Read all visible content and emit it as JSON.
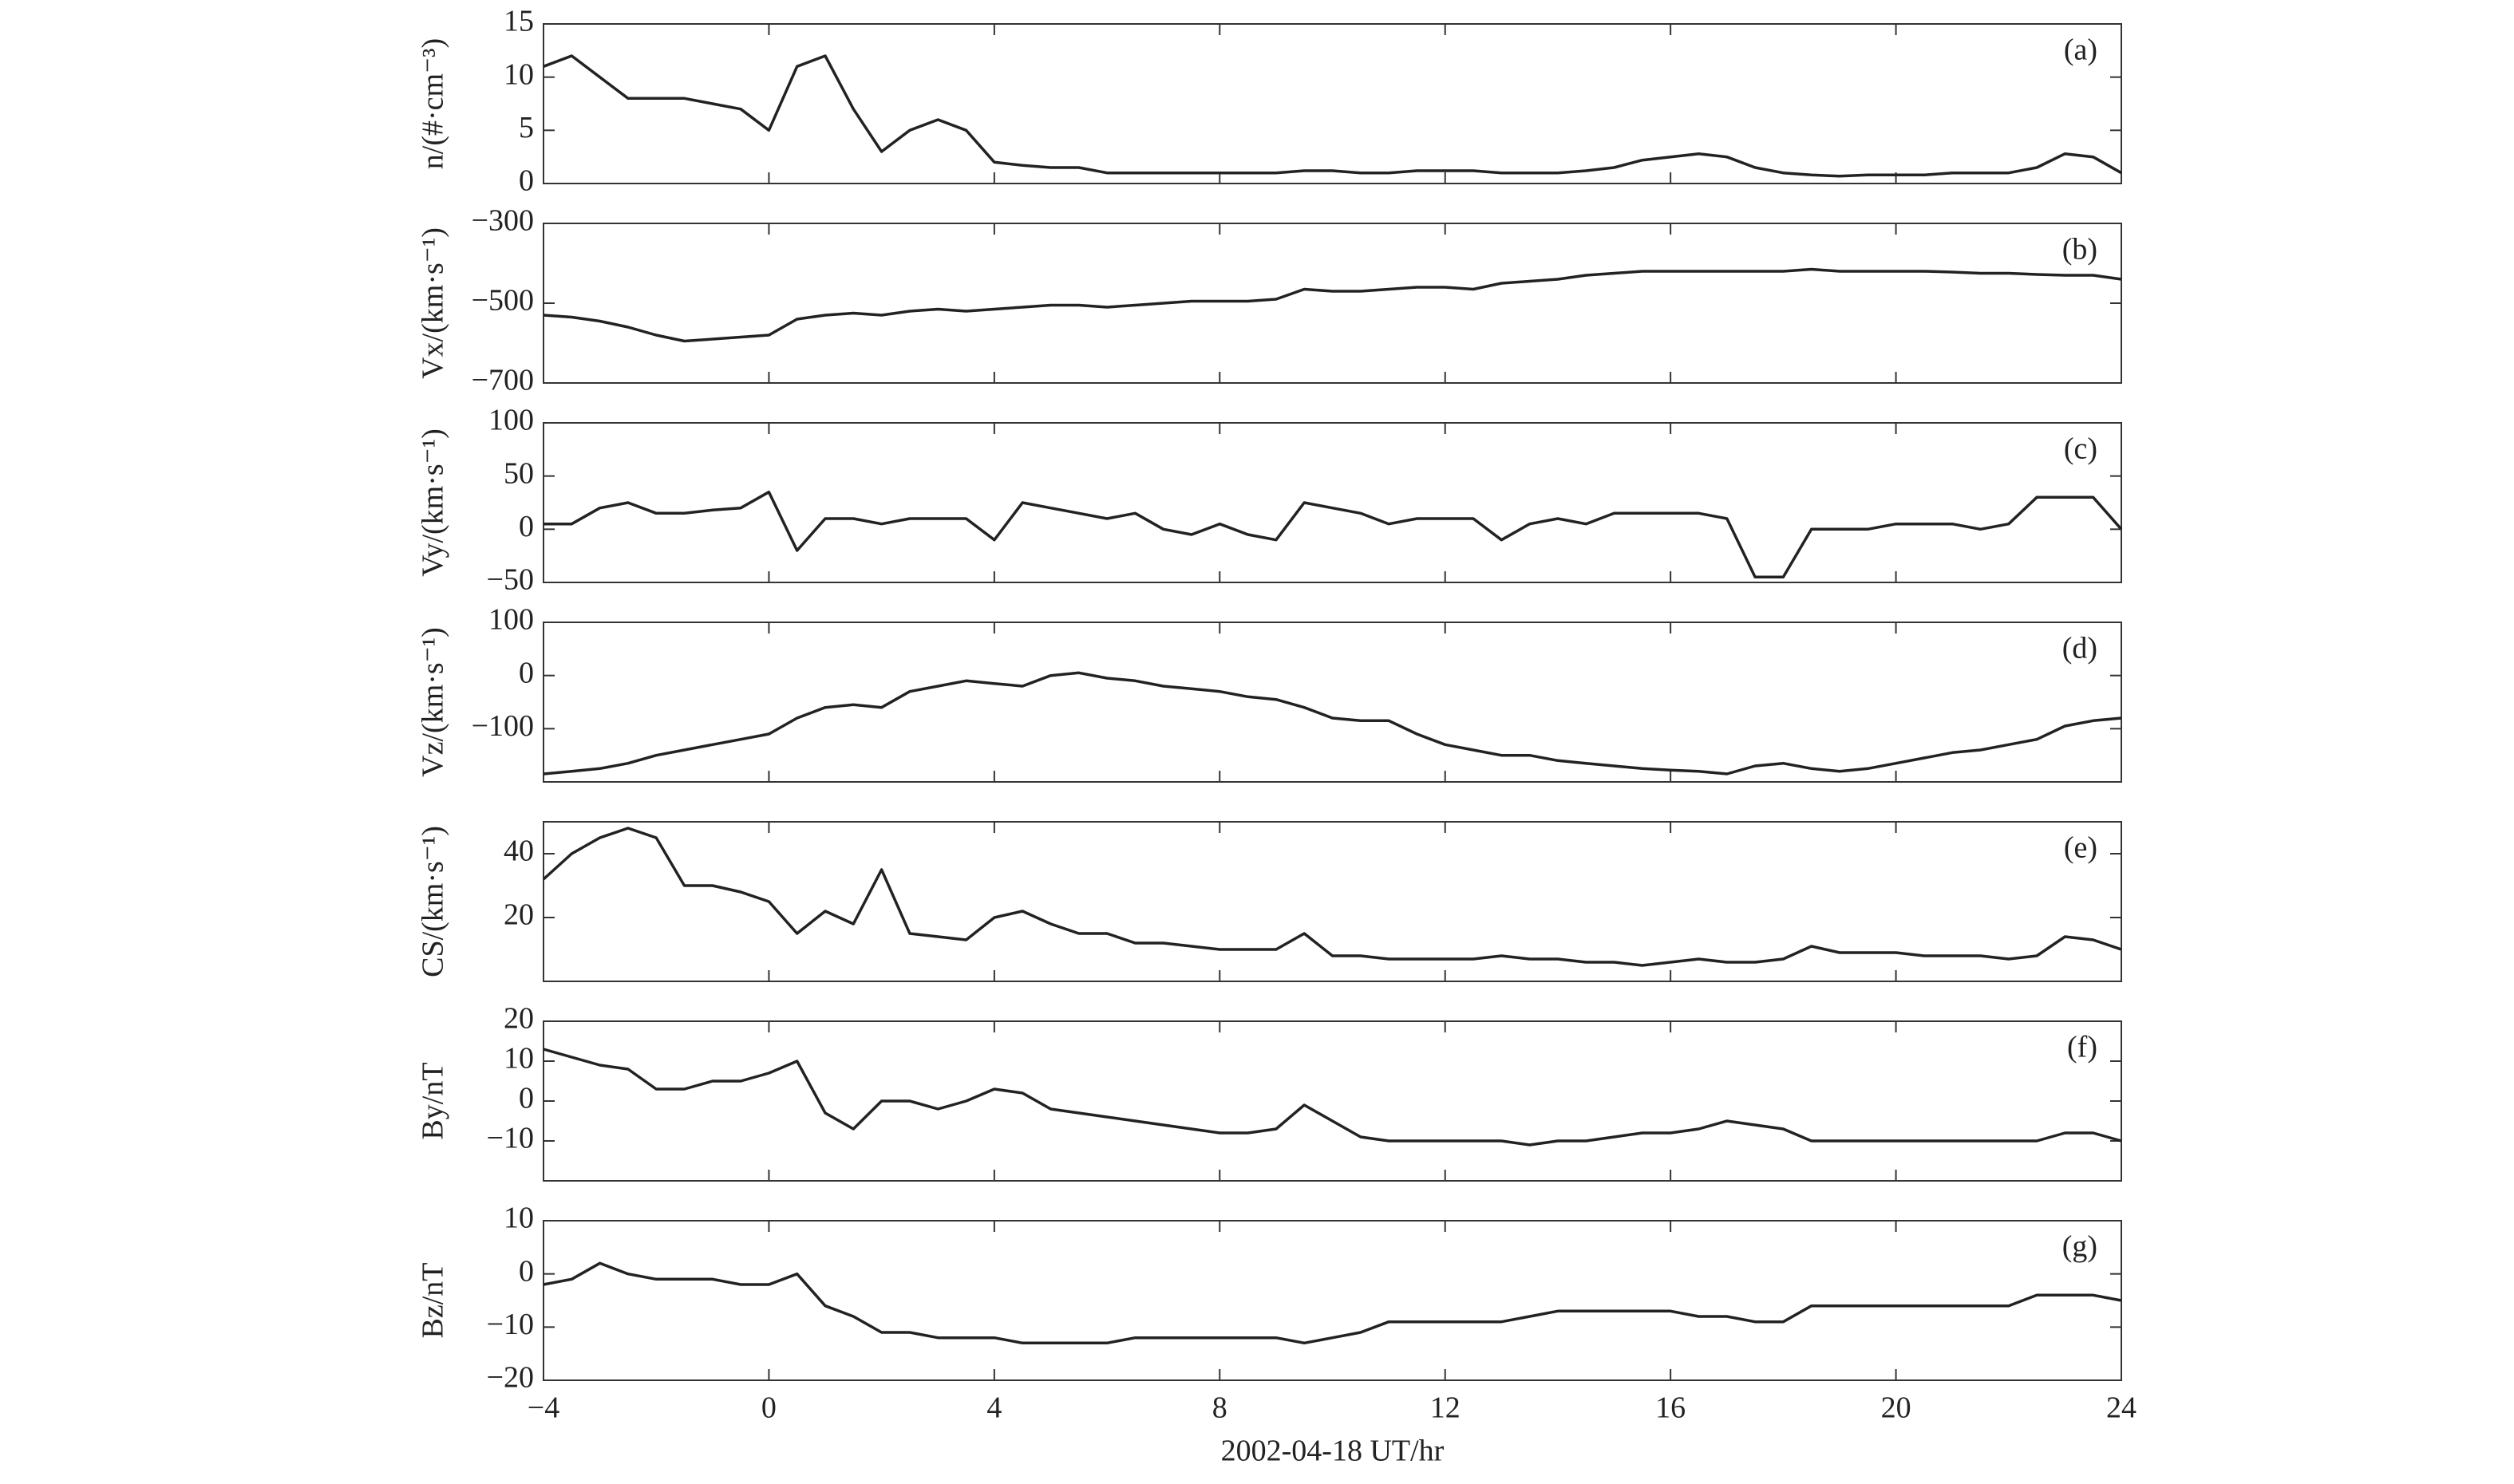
{
  "chart_data": [
    {
      "type": "line",
      "y_label": "n/(#·cm⁻³)",
      "annotation": "(a)",
      "x": [
        -4,
        -3.5,
        -3,
        -2.5,
        -2,
        -1.5,
        -1,
        -0.5,
        0,
        0.5,
        1,
        1.5,
        2,
        2.5,
        3,
        3.5,
        4,
        4.5,
        5,
        5.5,
        6,
        6.5,
        7,
        7.5,
        8,
        8.5,
        9,
        9.5,
        10,
        10.5,
        11,
        11.5,
        12,
        12.5,
        13,
        13.5,
        14,
        14.5,
        15,
        15.5,
        16,
        16.5,
        17,
        17.5,
        18,
        18.5,
        19,
        19.5,
        20,
        20.5,
        21,
        21.5,
        22,
        22.5,
        23,
        23.5,
        24
      ],
      "xlim": [
        -4,
        24
      ],
      "ylim": [
        0,
        15
      ],
      "yticks": [
        0,
        5,
        10,
        15
      ],
      "series": [
        {
          "color": "#222222",
          "values": [
            11,
            12,
            10,
            8,
            8,
            8,
            7.5,
            7,
            5,
            11,
            12,
            7,
            3,
            5,
            6,
            5,
            2,
            1.7,
            1.5,
            1.5,
            1,
            1,
            1,
            1,
            1,
            1,
            1,
            1.2,
            1.2,
            1,
            1,
            1.2,
            1.2,
            1.2,
            1,
            1,
            1,
            1.2,
            1.5,
            2.2,
            2.5,
            2.8,
            2.5,
            1.5,
            1,
            0.8,
            0.7,
            0.8,
            0.8,
            0.8,
            1,
            1,
            1,
            1.5,
            2.8,
            2.5,
            1
          ]
        }
      ]
    },
    {
      "type": "line",
      "y_label": "Vx/(km·s⁻¹)",
      "annotation": "(b)",
      "x": [
        -4,
        -3.5,
        -3,
        -2.5,
        -2,
        -1.5,
        -1,
        -0.5,
        0,
        0.5,
        1,
        1.5,
        2,
        2.5,
        3,
        3.5,
        4,
        4.5,
        5,
        5.5,
        6,
        6.5,
        7,
        7.5,
        8,
        8.5,
        9,
        9.5,
        10,
        10.5,
        11,
        11.5,
        12,
        12.5,
        13,
        13.5,
        14,
        14.5,
        15,
        15.5,
        16,
        16.5,
        17,
        17.5,
        18,
        18.5,
        19,
        19.5,
        20,
        20.5,
        21,
        21.5,
        22,
        22.5,
        23,
        23.5,
        24
      ],
      "xlim": [
        -4,
        24
      ],
      "ylim": [
        -700,
        -300
      ],
      "yticks": [
        {
          "value": -700,
          "label": "−700"
        },
        {
          "value": -500,
          "label": "−500"
        },
        {
          "value": -300,
          "label": "−300"
        }
      ],
      "series": [
        {
          "color": "#222222",
          "values": [
            -530,
            -535,
            -545,
            -560,
            -580,
            -595,
            -590,
            -585,
            -580,
            -540,
            -530,
            -525,
            -530,
            -520,
            -515,
            -520,
            -515,
            -510,
            -505,
            -505,
            -510,
            -505,
            -500,
            -495,
            -495,
            -495,
            -490,
            -465,
            -470,
            -470,
            -465,
            -460,
            -460,
            -465,
            -450,
            -445,
            -440,
            -430,
            -425,
            -420,
            -420,
            -420,
            -420,
            -420,
            -420,
            -415,
            -420,
            -420,
            -420,
            -420,
            -422,
            -425,
            -425,
            -428,
            -430,
            -430,
            -440
          ]
        }
      ]
    },
    {
      "type": "line",
      "y_label": "Vy/(km·s⁻¹)",
      "annotation": "(c)",
      "x": [
        -4,
        -3.5,
        -3,
        -2.5,
        -2,
        -1.5,
        -1,
        -0.5,
        0,
        0.5,
        1,
        1.5,
        2,
        2.5,
        3,
        3.5,
        4,
        4.5,
        5,
        5.5,
        6,
        6.5,
        7,
        7.5,
        8,
        8.5,
        9,
        9.5,
        10,
        10.5,
        11,
        11.5,
        12,
        12.5,
        13,
        13.5,
        14,
        14.5,
        15,
        15.5,
        16,
        16.5,
        17,
        17.5,
        18,
        18.5,
        19,
        19.5,
        20,
        20.5,
        21,
        21.5,
        22,
        22.5,
        23,
        23.5,
        24
      ],
      "xlim": [
        -4,
        24
      ],
      "ylim": [
        -50,
        100
      ],
      "yticks": [
        {
          "value": -50,
          "label": "−50"
        },
        0,
        50,
        100
      ],
      "series": [
        {
          "color": "#222222",
          "values": [
            5,
            5,
            20,
            25,
            15,
            15,
            18,
            20,
            35,
            -20,
            10,
            10,
            5,
            10,
            10,
            10,
            -10,
            25,
            20,
            15,
            10,
            15,
            0,
            -5,
            5,
            -5,
            -10,
            25,
            20,
            15,
            5,
            10,
            10,
            10,
            -10,
            5,
            10,
            5,
            15,
            15,
            15,
            15,
            10,
            -45,
            -45,
            0,
            0,
            0,
            5,
            5,
            5,
            0,
            5,
            30,
            30,
            30,
            0
          ]
        }
      ]
    },
    {
      "type": "line",
      "y_label": "Vz/(km·s⁻¹)",
      "annotation": "(d)",
      "x": [
        -4,
        -3.5,
        -3,
        -2.5,
        -2,
        -1.5,
        -1,
        -0.5,
        0,
        0.5,
        1,
        1.5,
        2,
        2.5,
        3,
        3.5,
        4,
        4.5,
        5,
        5.5,
        6,
        6.5,
        7,
        7.5,
        8,
        8.5,
        9,
        9.5,
        10,
        10.5,
        11,
        11.5,
        12,
        12.5,
        13,
        13.5,
        14,
        14.5,
        15,
        15.5,
        16,
        16.5,
        17,
        17.5,
        18,
        18.5,
        19,
        19.5,
        20,
        20.5,
        21,
        21.5,
        22,
        22.5,
        23,
        23.5,
        24
      ],
      "xlim": [
        -4,
        24
      ],
      "ylim": [
        -200,
        100
      ],
      "yticks": [
        {
          "value": -100,
          "label": "−100"
        },
        0,
        100
      ],
      "series": [
        {
          "color": "#222222",
          "values": [
            -185,
            -180,
            -175,
            -165,
            -150,
            -140,
            -130,
            -120,
            -110,
            -80,
            -60,
            -55,
            -60,
            -30,
            -20,
            -10,
            -15,
            -20,
            0,
            5,
            -5,
            -10,
            -20,
            -25,
            -30,
            -40,
            -45,
            -60,
            -80,
            -85,
            -85,
            -110,
            -130,
            -140,
            -150,
            -150,
            -160,
            -165,
            -170,
            -175,
            -178,
            -180,
            -185,
            -170,
            -165,
            -175,
            -180,
            -175,
            -165,
            -155,
            -145,
            -140,
            -130,
            -120,
            -95,
            -85,
            -80
          ]
        }
      ]
    },
    {
      "type": "line",
      "y_label": "CS/(km·s⁻¹)",
      "annotation": "(e)",
      "x": [
        -4,
        -3.5,
        -3,
        -2.5,
        -2,
        -1.5,
        -1,
        -0.5,
        0,
        0.5,
        1,
        1.5,
        2,
        2.5,
        3,
        3.5,
        4,
        4.5,
        5,
        5.5,
        6,
        6.5,
        7,
        7.5,
        8,
        8.5,
        9,
        9.5,
        10,
        10.5,
        11,
        11.5,
        12,
        12.5,
        13,
        13.5,
        14,
        14.5,
        15,
        15.5,
        16,
        16.5,
        17,
        17.5,
        18,
        18.5,
        19,
        19.5,
        20,
        20.5,
        21,
        21.5,
        22,
        22.5,
        23,
        23.5,
        24
      ],
      "xlim": [
        -4,
        24
      ],
      "ylim": [
        0,
        50
      ],
      "yticks": [
        20,
        40
      ],
      "series": [
        {
          "color": "#222222",
          "values": [
            32,
            40,
            45,
            48,
            45,
            30,
            30,
            28,
            25,
            15,
            22,
            18,
            35,
            15,
            14,
            13,
            20,
            22,
            18,
            15,
            15,
            12,
            12,
            11,
            10,
            10,
            10,
            15,
            8,
            8,
            7,
            7,
            7,
            7,
            8,
            7,
            7,
            6,
            6,
            5,
            6,
            7,
            6,
            6,
            7,
            11,
            9,
            9,
            9,
            8,
            8,
            8,
            7,
            8,
            14,
            13,
            10
          ]
        }
      ]
    },
    {
      "type": "line",
      "y_label": "By/nT",
      "annotation": "(f)",
      "x": [
        -4,
        -3.5,
        -3,
        -2.5,
        -2,
        -1.5,
        -1,
        -0.5,
        0,
        0.5,
        1,
        1.5,
        2,
        2.5,
        3,
        3.5,
        4,
        4.5,
        5,
        5.5,
        6,
        6.5,
        7,
        7.5,
        8,
        8.5,
        9,
        9.5,
        10,
        10.5,
        11,
        11.5,
        12,
        12.5,
        13,
        13.5,
        14,
        14.5,
        15,
        15.5,
        16,
        16.5,
        17,
        17.5,
        18,
        18.5,
        19,
        19.5,
        20,
        20.5,
        21,
        21.5,
        22,
        22.5,
        23,
        23.5,
        24
      ],
      "xlim": [
        -4,
        24
      ],
      "ylim": [
        -20,
        20
      ],
      "yticks": [
        {
          "value": -10,
          "label": "−10"
        },
        0,
        10,
        20
      ],
      "series": [
        {
          "color": "#222222",
          "values": [
            13,
            11,
            9,
            8,
            3,
            3,
            5,
            5,
            7,
            10,
            -3,
            -7,
            0,
            0,
            -2,
            0,
            3,
            2,
            -2,
            -3,
            -4,
            -5,
            -6,
            -7,
            -8,
            -8,
            -7,
            -1,
            -5,
            -9,
            -10,
            -10,
            -10,
            -10,
            -10,
            -11,
            -10,
            -10,
            -9,
            -8,
            -8,
            -7,
            -5,
            -6,
            -7,
            -10,
            -10,
            -10,
            -10,
            -10,
            -10,
            -10,
            -10,
            -10,
            -8,
            -8,
            -10
          ]
        }
      ]
    },
    {
      "type": "line",
      "y_label": "Bz/nT",
      "annotation": "(g)",
      "x_label": "2002-04-18 UT/hr",
      "x": [
        -4,
        -3.5,
        -3,
        -2.5,
        -2,
        -1.5,
        -1,
        -0.5,
        0,
        0.5,
        1,
        1.5,
        2,
        2.5,
        3,
        3.5,
        4,
        4.5,
        5,
        5.5,
        6,
        6.5,
        7,
        7.5,
        8,
        8.5,
        9,
        9.5,
        10,
        10.5,
        11,
        11.5,
        12,
        12.5,
        13,
        13.5,
        14,
        14.5,
        15,
        15.5,
        16,
        16.5,
        17,
        17.5,
        18,
        18.5,
        19,
        19.5,
        20,
        20.5,
        21,
        21.5,
        22,
        22.5,
        23,
        23.5,
        24
      ],
      "xlim": [
        -4,
        24
      ],
      "ylim": [
        -20,
        10
      ],
      "xticks": [
        {
          "value": -4,
          "label": "−4"
        },
        0,
        4,
        8,
        12,
        16,
        20,
        24
      ],
      "yticks": [
        {
          "value": -20,
          "label": "−20"
        },
        {
          "value": -10,
          "label": "−10"
        },
        0,
        10
      ],
      "series": [
        {
          "color": "#222222",
          "values": [
            -2,
            -1,
            2,
            0,
            -1,
            -1,
            -1,
            -2,
            -2,
            0,
            -6,
            -8,
            -11,
            -11,
            -12,
            -12,
            -12,
            -13,
            -13,
            -13,
            -13,
            -12,
            -12,
            -12,
            -12,
            -12,
            -12,
            -13,
            -12,
            -11,
            -9,
            -9,
            -9,
            -9,
            -9,
            -8,
            -7,
            -7,
            -7,
            -7,
            -7,
            -8,
            -8,
            -9,
            -9,
            -6,
            -6,
            -6,
            -6,
            -6,
            -6,
            -6,
            -6,
            -4,
            -4,
            -4,
            -5
          ]
        }
      ]
    }
  ]
}
